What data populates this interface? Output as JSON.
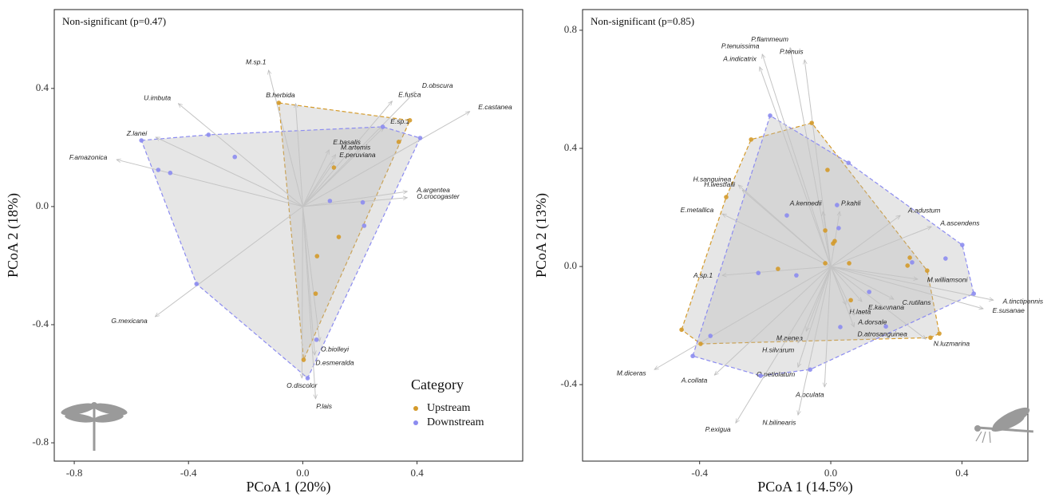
{
  "chart_data": [
    {
      "type": "scatter",
      "annotation": "Non-significant (p=0.47)",
      "x_label": "PCoA 1 (20%)",
      "y_label": "PCoA 2 (18%)",
      "xlim": [
        -0.87,
        0.77
      ],
      "ylim": [
        -0.862,
        0.667
      ],
      "xticks": [
        -0.8,
        -0.4,
        {
          "value": 0,
          "label": "0.0"
        },
        0.4
      ],
      "yticks": [
        -0.8,
        -0.4,
        {
          "value": 0,
          "label": "0.0"
        },
        0.4
      ],
      "legend": "bottom-right",
      "legend_title": "Category",
      "series": [
        {
          "name": "Upstream",
          "color": "#d49a2a",
          "x": [
            -0.084,
            0.375,
            0.336,
            0.109,
            0.126,
            0.05,
            0.045,
            0.003
          ],
          "y": [
            0.351,
            0.292,
            0.219,
            0.132,
            -0.103,
            -0.168,
            -0.295,
            -0.519
          ]
        },
        {
          "name": "Downstream",
          "color": "#8c8cf0",
          "x": [
            -0.565,
            -0.33,
            -0.238,
            -0.506,
            -0.464,
            0.28,
            0.411,
            0.095,
            0.21,
            0.215,
            -0.372,
            0.048,
            0.017
          ],
          "y": [
            0.224,
            0.243,
            0.168,
            0.124,
            0.114,
            0.27,
            0.232,
            0.019,
            0.014,
            -0.065,
            -0.262,
            -0.451,
            -0.581
          ]
        }
      ],
      "arrows": [
        {
          "label": "M.sp.1",
          "x": -0.12,
          "y": 0.462
        },
        {
          "label": "U.imbuta",
          "x": -0.436,
          "y": 0.349
        },
        {
          "label": "Z.lanei",
          "x": -0.515,
          "y": 0.235
        },
        {
          "label": "F.amazonica",
          "x": -0.652,
          "y": 0.159
        },
        {
          "label": "G.mexicana",
          "x": -0.517,
          "y": -0.373
        },
        {
          "label": "B.herbida",
          "x": -0.025,
          "y": 0.349
        },
        {
          "label": "E.fusca",
          "x": 0.313,
          "y": 0.357
        },
        {
          "label": "D.obscura",
          "x": 0.394,
          "y": 0.389
        },
        {
          "label": "E.castanea",
          "x": 0.585,
          "y": 0.322
        },
        {
          "label": "E.sp.1",
          "x": 0.283,
          "y": 0.268
        },
        {
          "label": "E.basalis",
          "x": 0.092,
          "y": 0.192
        },
        {
          "label": "M.artemis",
          "x": 0.115,
          "y": 0.176
        },
        {
          "label": "E.peruviana",
          "x": 0.109,
          "y": 0.151
        },
        {
          "label": "A.argentea",
          "x": 0.366,
          "y": 0.051
        },
        {
          "label": "O.crocogaster",
          "x": 0.366,
          "y": 0.03
        },
        {
          "label": "O.biolleyi",
          "x": 0.059,
          "y": -0.457
        },
        {
          "label": "D.esmeralda",
          "x": 0.042,
          "y": -0.503
        },
        {
          "label": "O.discolor",
          "x": -0.003,
          "y": -0.581
        },
        {
          "label": "P.lais",
          "x": 0.045,
          "y": -0.651
        }
      ]
    },
    {
      "type": "scatter",
      "annotation": "Non-significant (p=0.85)",
      "x_label": "PCoA 1 (14.5%)",
      "y_label": "PCoA 2 (13%)",
      "xlim": [
        -0.757,
        0.601
      ],
      "ylim": [
        -0.659,
        0.87
      ],
      "xticks": [
        -0.4,
        {
          "value": 0,
          "label": "0.0"
        },
        0.4
      ],
      "yticks": [
        -0.4,
        {
          "value": 0,
          "label": "0.0"
        },
        0.4,
        0.8
      ],
      "series": [
        {
          "color": "#d49a2a",
          "x": [
            -0.243,
            -0.058,
            -0.319,
            -0.01,
            -0.017,
            0.012,
            0.007,
            -0.017,
            0.056,
            0.241,
            0.234,
            0.294,
            -0.161,
            0.061,
            0.331,
            0.304,
            -0.455,
            -0.397
          ],
          "y": [
            0.43,
            0.486,
            0.235,
            0.327,
            0.122,
            0.086,
            0.078,
            0.011,
            0.011,
            0.03,
            0.003,
            -0.014,
            -0.008,
            -0.114,
            -0.227,
            -0.241,
            -0.214,
            -0.262
          ]
        },
        {
          "color": "#8c8cf0",
          "x": [
            -0.185,
            0.054,
            0.019,
            -0.134,
            0.024,
            0.401,
            0.35,
            0.248,
            0.436,
            -0.221,
            -0.105,
            0.117,
            0.029,
            0.168,
            -0.367,
            -0.421,
            -0.214,
            -0.063
          ],
          "y": [
            0.511,
            0.351,
            0.208,
            0.173,
            0.13,
            0.073,
            0.027,
            0.014,
            -0.092,
            -0.022,
            -0.03,
            -0.086,
            -0.205,
            -0.203,
            -0.235,
            -0.303,
            -0.37,
            -0.349
          ]
        }
      ],
      "arrows": [
        {
          "label": "P.flammeum",
          "x": -0.124,
          "y": 0.741
        },
        {
          "label": "P.tenuissima",
          "x": -0.209,
          "y": 0.719
        },
        {
          "label": "A.indicatrix",
          "x": -0.217,
          "y": 0.676
        },
        {
          "label": "P.tenuis",
          "x": -0.08,
          "y": 0.7
        },
        {
          "label": "H.sanguinea",
          "x": -0.282,
          "y": 0.276
        },
        {
          "label": "H.westfalli",
          "x": -0.27,
          "y": 0.259
        },
        {
          "label": "E.metallica",
          "x": -0.331,
          "y": 0.178
        },
        {
          "label": "A.kennedii",
          "x": -0.024,
          "y": 0.186
        },
        {
          "label": "P.kahli",
          "x": 0.027,
          "y": 0.186
        },
        {
          "label": "A.adustum",
          "x": 0.212,
          "y": 0.173
        },
        {
          "label": "A.ascendens",
          "x": 0.307,
          "y": 0.135
        },
        {
          "label": "A.sp.1",
          "x": -0.331,
          "y": -0.03
        },
        {
          "label": "M.williamsoni",
          "x": 0.265,
          "y": -0.043
        },
        {
          "label": "A.tinctipennis",
          "x": 0.496,
          "y": -0.114
        },
        {
          "label": "E.susanae",
          "x": 0.465,
          "y": -0.143
        },
        {
          "label": "H.laeta",
          "x": 0.046,
          "y": -0.13
        },
        {
          "label": "E.kaxunana",
          "x": 0.095,
          "y": -0.119
        },
        {
          "label": "C.rutilans",
          "x": 0.192,
          "y": -0.111
        },
        {
          "label": "A.dorsale",
          "x": 0.071,
          "y": -0.165
        },
        {
          "label": "D.atrosanguinea",
          "x": 0.071,
          "y": -0.205
        },
        {
          "label": "N.luzmarina",
          "x": 0.29,
          "y": -0.246
        },
        {
          "label": "M.aenea",
          "x": -0.075,
          "y": -0.219
        },
        {
          "label": "H.silvarum",
          "x": -0.1,
          "y": -0.259
        },
        {
          "label": "O.petiolatum",
          "x": -0.1,
          "y": -0.341
        },
        {
          "label": "A.oculata",
          "x": -0.019,
          "y": -0.408
        },
        {
          "label": "N.bilinearis",
          "x": -0.1,
          "y": -0.503
        },
        {
          "label": "M.diceras",
          "x": -0.538,
          "y": -0.349
        },
        {
          "label": "A.collata",
          "x": -0.355,
          "y": -0.368
        },
        {
          "label": "P.exigua",
          "x": -0.29,
          "y": -0.53
        }
      ]
    }
  ]
}
